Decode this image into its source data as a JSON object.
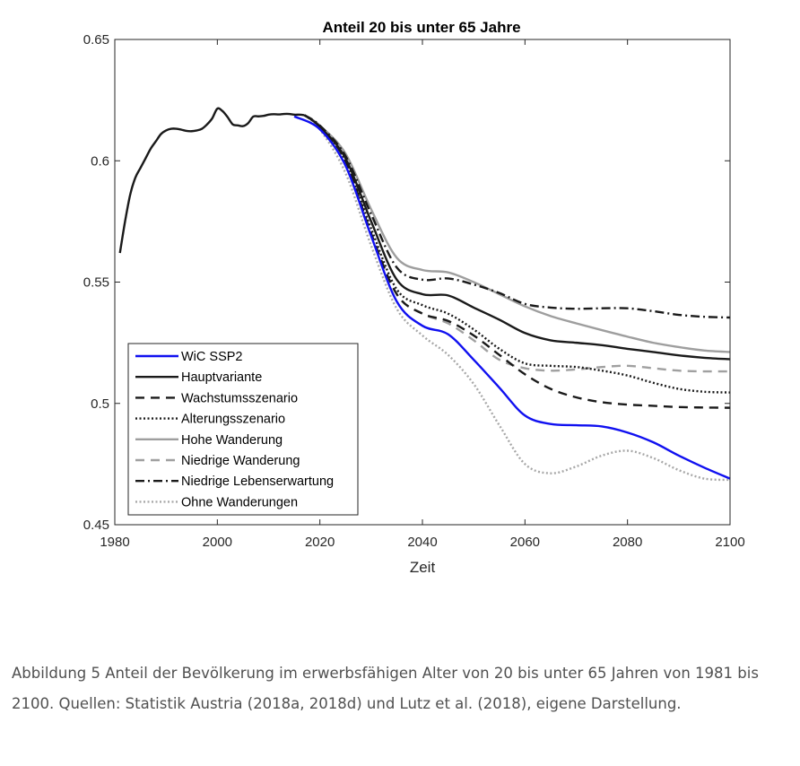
{
  "chart_data": {
    "type": "line",
    "title": "Anteil 20 bis unter 65 Jahre",
    "xlabel": "Zeit",
    "ylabel": "",
    "xlim": [
      1980,
      2100
    ],
    "ylim": [
      0.45,
      0.65
    ],
    "xticks": [
      1980,
      2000,
      2020,
      2040,
      2060,
      2080,
      2100
    ],
    "yticks": [
      0.45,
      0.5,
      0.55,
      0.6,
      0.65
    ],
    "xtick_labels": [
      "1980",
      "2000",
      "2020",
      "2040",
      "2060",
      "2080",
      "2100"
    ],
    "ytick_labels": [
      "0.45",
      "0.5",
      "0.55",
      "0.6",
      "0.65"
    ],
    "grid": false,
    "legend_position": "bottom-left",
    "history": {
      "color": "#1a1a1a",
      "x": [
        1981,
        1982,
        1983,
        1984,
        1985,
        1986,
        1987,
        1988,
        1989,
        1990,
        1991,
        1992,
        1993,
        1994,
        1995,
        1996,
        1997,
        1998,
        1999,
        2000,
        2001,
        2002,
        2003,
        2004,
        2005,
        2006,
        2007,
        2008,
        2009,
        2010,
        2011,
        2012,
        2013,
        2014,
        2015,
        2016,
        2017
      ],
      "y": [
        0.562,
        0.575,
        0.586,
        0.593,
        0.597,
        0.601,
        0.605,
        0.608,
        0.611,
        0.6125,
        0.6132,
        0.6132,
        0.6128,
        0.6123,
        0.6122,
        0.6125,
        0.6132,
        0.615,
        0.6175,
        0.6215,
        0.6205,
        0.618,
        0.615,
        0.6146,
        0.6143,
        0.6155,
        0.6182,
        0.6183,
        0.6185,
        0.619,
        0.6192,
        0.6191,
        0.6193,
        0.6193,
        0.619,
        0.619,
        0.6188
      ]
    },
    "series": [
      {
        "name": "WiC SSP2",
        "color": "#1010f0",
        "dash": "solid",
        "x": [
          2015,
          2020,
          2025,
          2030,
          2035,
          2040,
          2045,
          2050,
          2055,
          2060,
          2065,
          2070,
          2075,
          2080,
          2085,
          2090,
          2095,
          2100
        ],
        "y": [
          0.6183,
          0.613,
          0.598,
          0.569,
          0.542,
          0.532,
          0.5285,
          0.518,
          0.5065,
          0.495,
          0.4915,
          0.491,
          0.4905,
          0.488,
          0.484,
          0.4785,
          0.4735,
          0.469
        ]
      },
      {
        "name": "Hauptvariante",
        "color": "#1a1a1a",
        "dash": "solid",
        "x": [
          2017,
          2020,
          2025,
          2030,
          2035,
          2040,
          2045,
          2050,
          2055,
          2060,
          2065,
          2070,
          2075,
          2080,
          2085,
          2090,
          2095,
          2100
        ],
        "y": [
          0.6188,
          0.614,
          0.601,
          0.575,
          0.551,
          0.545,
          0.5445,
          0.5395,
          0.5345,
          0.529,
          0.526,
          0.525,
          0.524,
          0.5225,
          0.5212,
          0.5198,
          0.5188,
          0.5182
        ]
      },
      {
        "name": "Wachstumsszenario",
        "color": "#1a1a1a",
        "dash": "10,7",
        "x": [
          2017,
          2020,
          2025,
          2030,
          2035,
          2040,
          2045,
          2050,
          2055,
          2060,
          2065,
          2070,
          2075,
          2080,
          2085,
          2090,
          2095,
          2100
        ],
        "y": [
          0.6188,
          0.614,
          0.6,
          0.57,
          0.545,
          0.537,
          0.534,
          0.528,
          0.52,
          0.512,
          0.506,
          0.5025,
          0.5005,
          0.4995,
          0.499,
          0.4985,
          0.4983,
          0.4982
        ]
      },
      {
        "name": "Alterungsszenario",
        "color": "#1a1a1a",
        "dash": "2,2.5",
        "x": [
          2017,
          2020,
          2025,
          2030,
          2035,
          2040,
          2045,
          2050,
          2055,
          2060,
          2065,
          2070,
          2075,
          2080,
          2085,
          2090,
          2095,
          2100
        ],
        "y": [
          0.6188,
          0.614,
          0.6,
          0.572,
          0.547,
          0.5405,
          0.537,
          0.5305,
          0.5225,
          0.5165,
          0.5155,
          0.515,
          0.5135,
          0.5115,
          0.5085,
          0.506,
          0.5048,
          0.5045
        ]
      },
      {
        "name": "Hohe Wanderung",
        "color": "#9e9e9e",
        "dash": "solid",
        "x": [
          2017,
          2020,
          2025,
          2030,
          2035,
          2040,
          2045,
          2050,
          2055,
          2060,
          2065,
          2070,
          2075,
          2080,
          2085,
          2090,
          2095,
          2100
        ],
        "y": [
          0.6188,
          0.6145,
          0.603,
          0.58,
          0.56,
          0.555,
          0.554,
          0.55,
          0.545,
          0.54,
          0.536,
          0.533,
          0.5302,
          0.5275,
          0.525,
          0.5232,
          0.5218,
          0.5212
        ]
      },
      {
        "name": "Niedrige Wanderung",
        "color": "#a0a0a0",
        "dash": "10,7",
        "x": [
          2017,
          2020,
          2025,
          2030,
          2035,
          2040,
          2045,
          2050,
          2055,
          2060,
          2065,
          2070,
          2075,
          2080,
          2085,
          2090,
          2095,
          2100
        ],
        "y": [
          0.6188,
          0.614,
          0.599,
          0.57,
          0.545,
          0.537,
          0.533,
          0.526,
          0.518,
          0.5145,
          0.5135,
          0.514,
          0.515,
          0.5155,
          0.5145,
          0.5135,
          0.5132,
          0.5132
        ]
      },
      {
        "name": "Niedrige Lebenserwartung",
        "color": "#1a1a1a",
        "dash": "10,4,2,4",
        "x": [
          2017,
          2020,
          2025,
          2030,
          2035,
          2040,
          2045,
          2050,
          2055,
          2060,
          2065,
          2070,
          2075,
          2080,
          2085,
          2090,
          2095,
          2100
        ],
        "y": [
          0.6188,
          0.6145,
          0.602,
          0.578,
          0.556,
          0.551,
          0.5515,
          0.549,
          0.5455,
          0.541,
          0.5395,
          0.539,
          0.5392,
          0.5392,
          0.538,
          0.5365,
          0.5357,
          0.5354
        ]
      },
      {
        "name": "Ohne Wanderungen",
        "color": "#a8a8a8",
        "dash": "2,2.5",
        "x": [
          2017,
          2020,
          2025,
          2030,
          2035,
          2040,
          2045,
          2050,
          2055,
          2060,
          2065,
          2070,
          2075,
          2080,
          2085,
          2090,
          2095,
          2100
        ],
        "y": [
          0.6188,
          0.613,
          0.595,
          0.565,
          0.539,
          0.528,
          0.52,
          0.508,
          0.491,
          0.475,
          0.4712,
          0.474,
          0.4785,
          0.4805,
          0.4775,
          0.4725,
          0.469,
          0.4685
        ]
      }
    ]
  },
  "legend_labels": [
    "WiC SSP2",
    "Hauptvariante",
    "Wachstumsszenario",
    "Alterungsszenario",
    "Hohe Wanderung",
    "Niedrige Wanderung",
    "Niedrige Lebenserwartung",
    "Ohne Wanderungen"
  ],
  "caption": "Abbildung 5 Anteil der Bevölkerung im erwerbsfähigen Alter von 20 bis unter 65 Jahren von 1981 bis 2100. Quellen: Statistik Austria (2018a, 2018d) und Lutz et al. (2018), eigene Darstellung."
}
